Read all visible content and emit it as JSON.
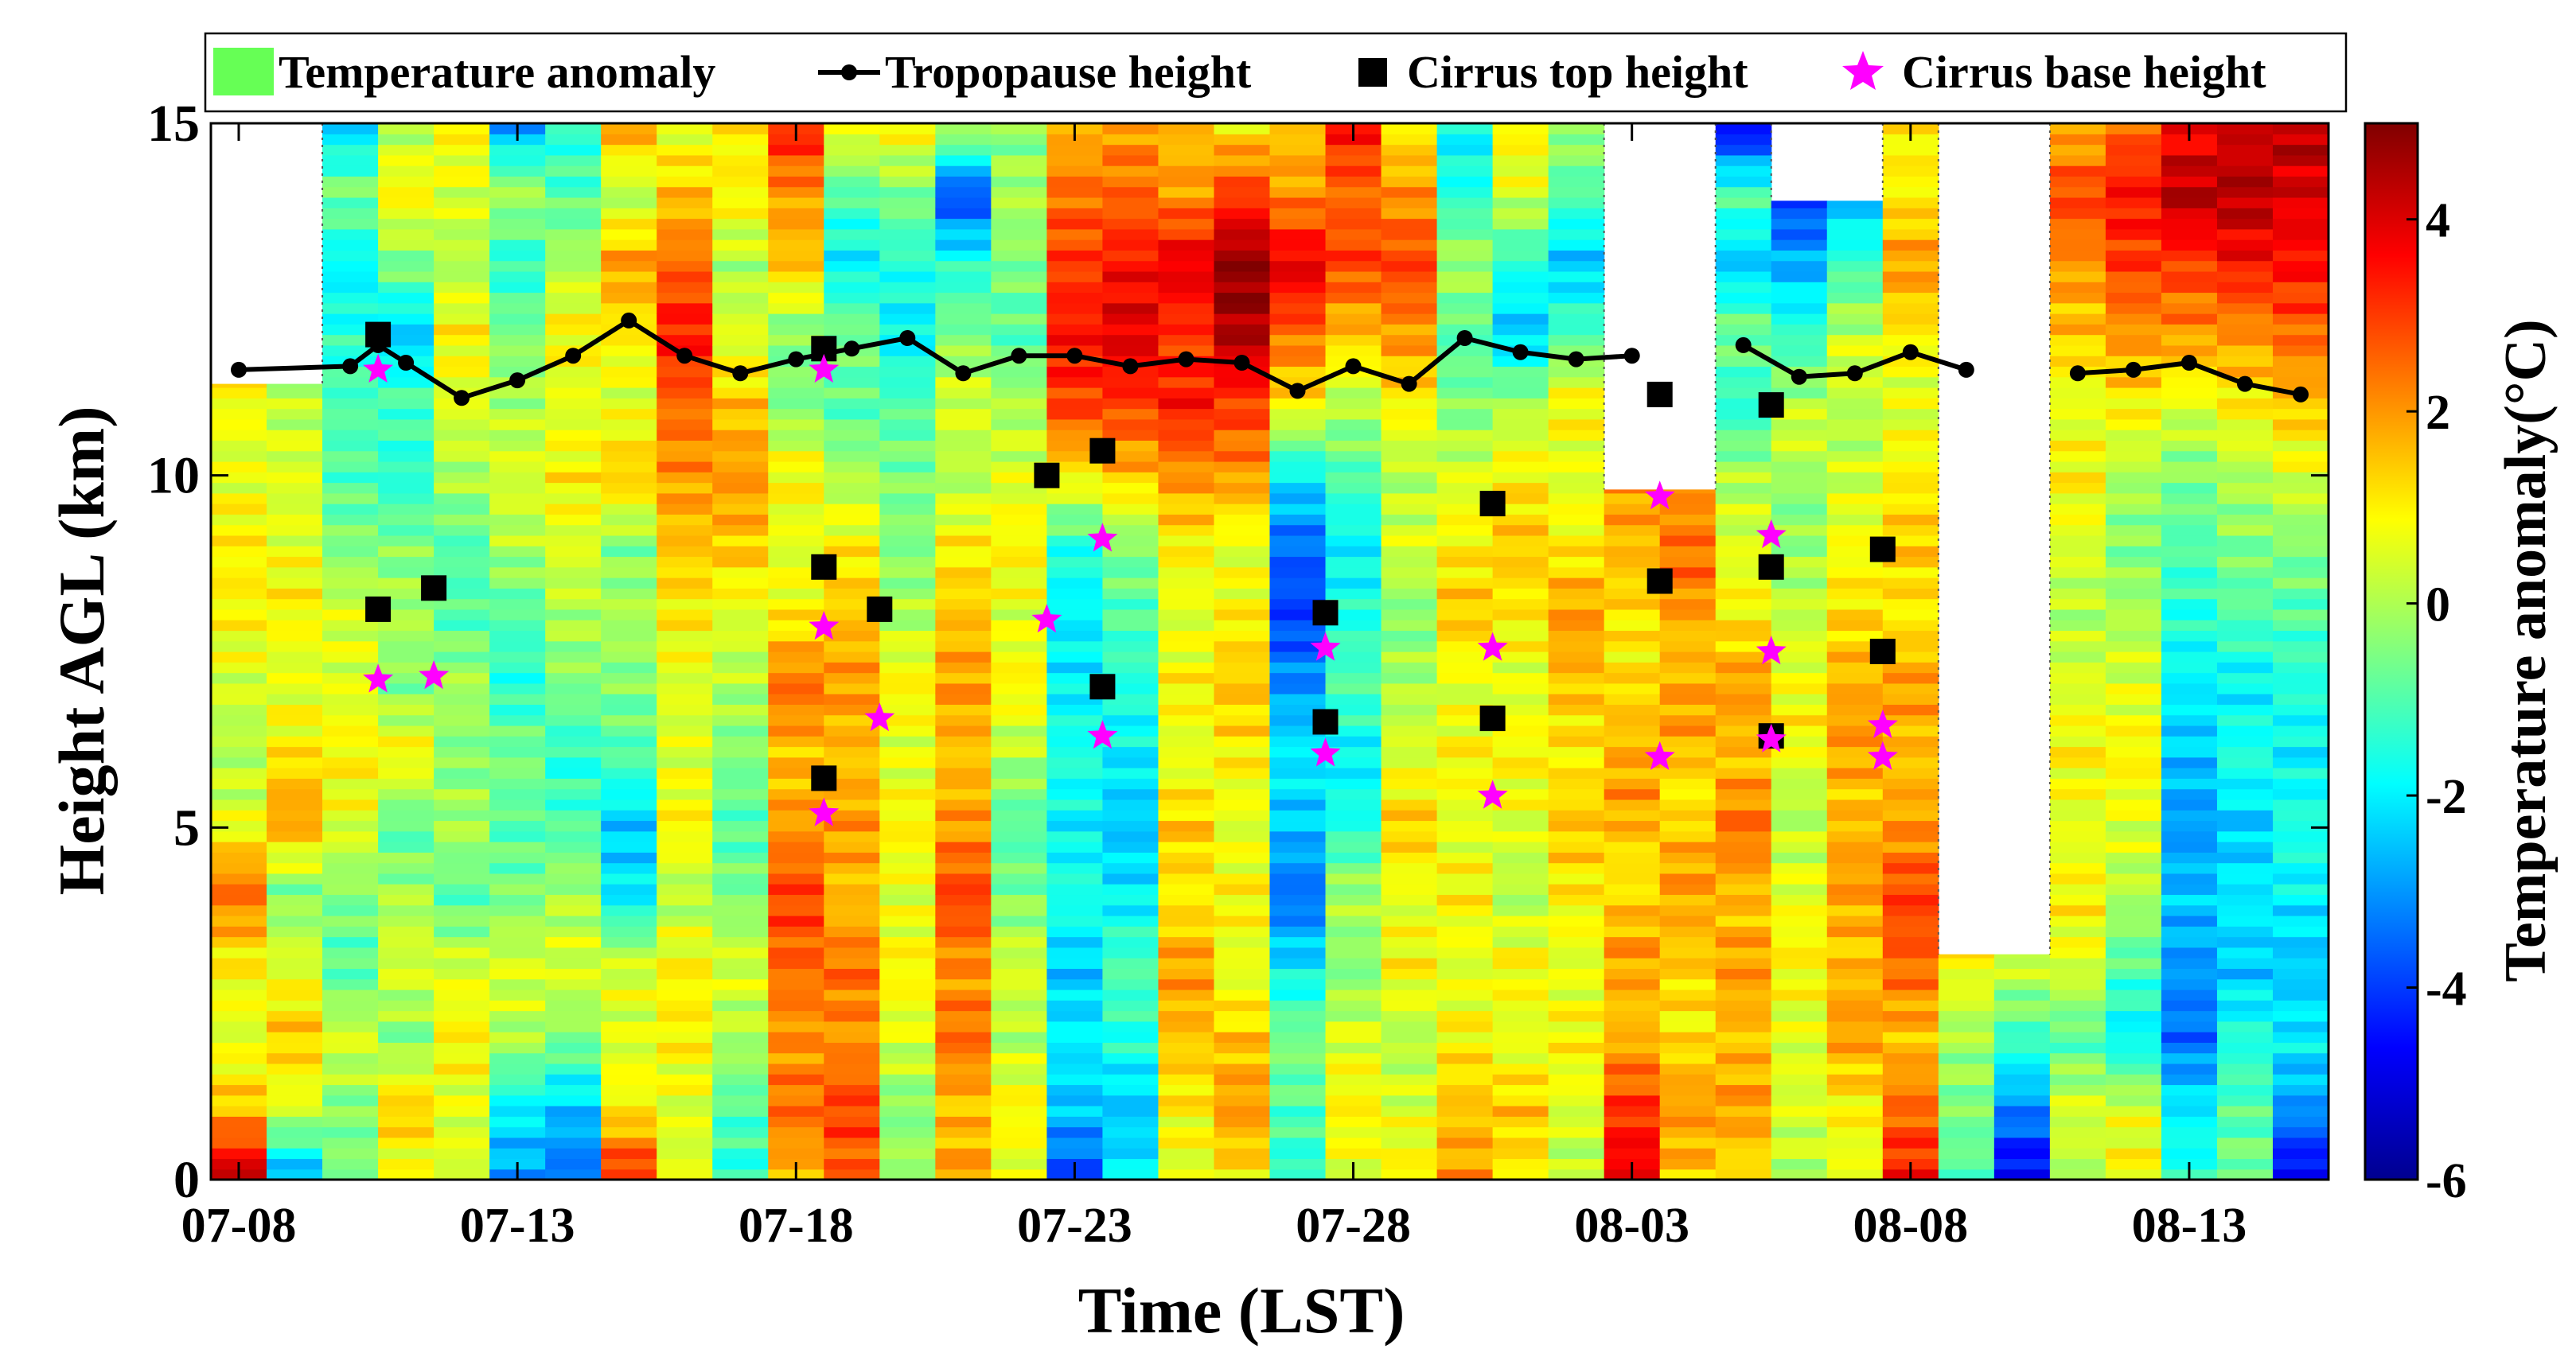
{
  "chart_data": {
    "type": "heatmap",
    "title": "",
    "xlabel": "Time (LST)",
    "ylabel": "Height AGL (km)",
    "colorbar_label": "Temperature anomaly(°C)",
    "x_tick_labels": [
      "07-08",
      "07-13",
      "07-18",
      "07-23",
      "07-28",
      "08-03",
      "08-08",
      "08-13"
    ],
    "x_tick_days": [
      0,
      5,
      10,
      15,
      20,
      25,
      30,
      35
    ],
    "xlim_days": [
      -0.5,
      37.5
    ],
    "y_ticks": [
      0,
      5,
      10,
      15
    ],
    "ylim": [
      0,
      15
    ],
    "clim": [
      -6,
      5
    ],
    "colorbar_ticks": [
      -6,
      -4,
      -2,
      0,
      2,
      4
    ],
    "colormap": "jet",
    "legend": {
      "position": "top",
      "entries": [
        {
          "label": "Temperature anomaly",
          "marker": "patch",
          "color": "#66ff55"
        },
        {
          "label": "Tropopause height",
          "marker": "line-dot",
          "color": "#000000"
        },
        {
          "label": "Cirrus top height",
          "marker": "square",
          "color": "#000000"
        },
        {
          "label": "Cirrus base height",
          "marker": "star",
          "color": "#ff00ff"
        }
      ]
    },
    "profiles": [
      {
        "day": 0,
        "top_km": 11.3
      },
      {
        "day": 1,
        "top_km": 11.3
      },
      {
        "day": 2,
        "top_km": 15.0
      },
      {
        "day": 3,
        "top_km": 15.0
      },
      {
        "day": 4,
        "top_km": 15.0
      },
      {
        "day": 5,
        "top_km": 15.0
      },
      {
        "day": 6,
        "top_km": 15.0
      },
      {
        "day": 7,
        "top_km": 15.0
      },
      {
        "day": 8,
        "top_km": 15.0
      },
      {
        "day": 9,
        "top_km": 15.0
      },
      {
        "day": 10,
        "top_km": 15.0
      },
      {
        "day": 11,
        "top_km": 15.0
      },
      {
        "day": 12,
        "top_km": 15.0
      },
      {
        "day": 13,
        "top_km": 15.0
      },
      {
        "day": 14,
        "top_km": 15.0
      },
      {
        "day": 15,
        "top_km": 15.0
      },
      {
        "day": 16,
        "top_km": 15.0
      },
      {
        "day": 17,
        "top_km": 15.0
      },
      {
        "day": 18,
        "top_km": 15.0
      },
      {
        "day": 19,
        "top_km": 15.0
      },
      {
        "day": 20,
        "top_km": 15.0
      },
      {
        "day": 21,
        "top_km": 15.0
      },
      {
        "day": 22,
        "top_km": 15.0
      },
      {
        "day": 23,
        "top_km": 15.0
      },
      {
        "day": 24,
        "top_km": 15.0
      },
      {
        "day": 25,
        "top_km": 9.8
      },
      {
        "day": 26,
        "top_km": 9.8
      },
      {
        "day": 27,
        "top_km": 15.0
      },
      {
        "day": 28,
        "top_km": 13.9
      },
      {
        "day": 29,
        "top_km": 13.9
      },
      {
        "day": 30,
        "top_km": 15.0
      },
      {
        "day": 31,
        "top_km": 3.2
      },
      {
        "day": 32,
        "top_km": 3.2
      },
      {
        "day": 33,
        "top_km": 15.0
      },
      {
        "day": 34,
        "top_km": 15.0
      },
      {
        "day": 35,
        "top_km": 15.0
      },
      {
        "day": 36,
        "top_km": 15.0
      },
      {
        "day": 37,
        "top_km": 15.0
      }
    ],
    "anomaly_profiles_C": [
      {
        "day": 0,
        "anchors": [
          4.5,
          1.5,
          0.5,
          1.0,
          2.5,
          0.5,
          0.0,
          0.5,
          1.0,
          1.0,
          0.5,
          1.0
        ]
      },
      {
        "day": 1,
        "anchors": [
          -3.0,
          0.5,
          1.5,
          0.5,
          -0.5,
          2.0,
          1.0,
          0.5,
          1.0,
          0.5,
          0.5,
          0.0
        ]
      },
      {
        "day": 2,
        "anchors": [
          -0.5,
          -0.5,
          0.5,
          -1.0,
          -0.5,
          0.5,
          1.0,
          0.5,
          0.5,
          -0.5,
          -1.0,
          -1.0,
          -1.5,
          -2.0,
          -0.5,
          -2.5
        ]
      },
      {
        "day": 3,
        "anchors": [
          0.5,
          1.5,
          -0.5,
          0.5,
          0.0,
          -1.0,
          1.0,
          -0.5,
          0.0,
          -0.5,
          -1.5,
          -1.0,
          -2.5,
          -0.5,
          1.0,
          0.0
        ]
      },
      {
        "day": 4,
        "anchors": [
          0.5,
          0.5,
          1.0,
          0.5,
          -1.0,
          0.0,
          -0.5,
          0.0,
          -1.0,
          -1.0,
          0.0,
          0.5,
          1.0,
          0.0,
          0.5,
          1.0
        ]
      },
      {
        "day": 5,
        "anchors": [
          -3.0,
          -2.0,
          0.0,
          0.5,
          -0.5,
          -1.0,
          -0.5,
          -1.5,
          -1.0,
          0.0,
          0.5,
          0.0,
          -0.5,
          -1.5,
          0.0,
          -3.0
        ]
      },
      {
        "day": 6,
        "anchors": [
          -3.5,
          -2.5,
          -0.5,
          0.5,
          0.0,
          -1.0,
          -1.5,
          -0.5,
          0.0,
          0.5,
          1.0,
          0.5,
          1.0,
          0.0,
          -1.0,
          -1.5
        ]
      },
      {
        "day": 7,
        "anchors": [
          3.5,
          1.0,
          0.5,
          0.5,
          -2.0,
          -2.5,
          -1.0,
          -0.5,
          0.0,
          -0.5,
          1.5,
          0.5,
          1.0,
          2.0,
          0.0,
          2.0
        ]
      },
      {
        "day": 8,
        "anchors": [
          0.5,
          0.5,
          1.0,
          1.0,
          0.0,
          1.0,
          0.5,
          0.5,
          1.0,
          1.5,
          2.0,
          2.5,
          3.5,
          2.5,
          1.5,
          0.5
        ]
      },
      {
        "day": 9,
        "anchors": [
          -1.5,
          -1.0,
          0.0,
          0.5,
          -0.5,
          -1.0,
          -0.5,
          0.0,
          0.5,
          1.5,
          2.0,
          1.5,
          0.5,
          0.0,
          1.0,
          1.0
        ]
      },
      {
        "day": 10,
        "anchors": [
          1.5,
          2.5,
          2.0,
          2.5,
          3.0,
          2.0,
          1.5,
          2.5,
          1.0,
          0.5,
          1.0,
          -0.5,
          -0.5,
          1.5,
          2.0,
          3.5
        ]
      },
      {
        "day": 11,
        "anchors": [
          2.5,
          3.0,
          2.0,
          2.5,
          1.5,
          2.0,
          1.5,
          2.0,
          1.5,
          1.0,
          0.0,
          -1.0,
          -0.5,
          -2.0,
          -1.0,
          1.0
        ]
      },
      {
        "day": 12,
        "anchors": [
          0.0,
          -0.5,
          0.5,
          1.0,
          0.5,
          1.0,
          0.5,
          1.0,
          0.0,
          -0.5,
          -0.5,
          -1.0,
          -2.0,
          -1.5,
          -0.5,
          1.0
        ]
      },
      {
        "day": 13,
        "anchors": [
          2.0,
          1.5,
          2.5,
          2.0,
          3.0,
          2.0,
          1.5,
          2.0,
          1.5,
          1.0,
          0.0,
          0.5,
          -0.5,
          -1.5,
          -4.0,
          0.5
        ]
      },
      {
        "day": 14,
        "anchors": [
          0.5,
          1.0,
          0.0,
          0.5,
          -0.5,
          -1.0,
          0.0,
          1.0,
          0.5,
          1.0,
          0.5,
          0.0,
          -1.0,
          -0.5,
          0.0,
          -0.5
        ]
      },
      {
        "day": 15,
        "anchors": [
          -4.0,
          -2.5,
          -2.0,
          -2.5,
          -1.5,
          -2.0,
          -1.5,
          -2.0,
          -2.0,
          -1.5,
          1.0,
          3.0,
          3.5,
          3.0,
          2.5,
          1.5
        ]
      },
      {
        "day": 16,
        "anchors": [
          -2.0,
          -2.5,
          -1.5,
          -1.0,
          -2.0,
          -2.5,
          -2.0,
          -1.5,
          -1.0,
          -0.5,
          1.5,
          3.0,
          4.0,
          3.5,
          2.5,
          2.0
        ]
      },
      {
        "day": 17,
        "anchors": [
          0.5,
          1.0,
          1.5,
          2.0,
          1.0,
          1.5,
          0.5,
          1.0,
          0.5,
          1.0,
          2.0,
          3.5,
          3.0,
          4.0,
          2.0,
          1.5
        ]
      },
      {
        "day": 18,
        "anchors": [
          1.0,
          2.0,
          1.5,
          0.5,
          1.0,
          0.5,
          1.0,
          1.5,
          1.0,
          0.5,
          2.0,
          3.0,
          4.5,
          5.0,
          3.0,
          1.0
        ]
      },
      {
        "day": 19,
        "anchors": [
          -1.5,
          -1.0,
          -0.5,
          -2.0,
          -3.5,
          -2.5,
          -2.0,
          -3.0,
          -4.0,
          -3.5,
          -2.0,
          1.0,
          2.5,
          4.0,
          2.0,
          1.5
        ]
      },
      {
        "day": 20,
        "anchors": [
          0.5,
          1.0,
          0.5,
          -0.5,
          0.0,
          -1.5,
          -2.0,
          -1.0,
          -1.5,
          -2.0,
          -1.0,
          0.0,
          1.5,
          3.0,
          2.5,
          3.5
        ]
      },
      {
        "day": 21,
        "anchors": [
          1.0,
          0.5,
          0.0,
          1.0,
          0.5,
          1.5,
          0.5,
          0.0,
          -0.5,
          0.5,
          0.0,
          1.0,
          2.0,
          3.0,
          2.0,
          1.0
        ]
      },
      {
        "day": 22,
        "anchors": [
          2.0,
          1.5,
          1.0,
          0.5,
          1.0,
          0.5,
          1.0,
          0.5,
          1.5,
          1.0,
          0.5,
          -0.5,
          -1.0,
          0.0,
          -1.5,
          -2.0
        ]
      },
      {
        "day": 23,
        "anchors": [
          1.0,
          1.5,
          0.5,
          1.0,
          0.0,
          0.5,
          1.0,
          0.5,
          1.0,
          1.5,
          1.0,
          0.0,
          -2.5,
          -1.5,
          0.5,
          1.0
        ]
      },
      {
        "day": 24,
        "anchors": [
          0.0,
          0.5,
          1.0,
          0.5,
          1.0,
          1.5,
          1.0,
          1.5,
          2.0,
          1.0,
          0.5,
          1.0,
          -1.0,
          -2.5,
          -1.0,
          0.0
        ]
      },
      {
        "day": 25,
        "anchors": [
          4.0,
          3.0,
          1.5,
          2.0,
          1.0,
          2.0,
          1.5,
          1.0,
          1.5,
          2.0
        ]
      },
      {
        "day": 26,
        "anchors": [
          1.5,
          2.0,
          1.0,
          1.5,
          2.0,
          1.0,
          2.0,
          1.5,
          2.5,
          2.0
        ]
      },
      {
        "day": 27,
        "anchors": [
          1.0,
          2.0,
          1.5,
          2.0,
          1.5,
          2.5,
          1.5,
          2.0,
          1.0,
          0.5,
          0.0,
          -1.5,
          -0.5,
          -2.5,
          -1.0,
          -5.0
        ]
      },
      {
        "day": 28,
        "anchors": [
          0.0,
          0.5,
          0.5,
          1.0,
          0.5,
          0.0,
          1.0,
          0.5,
          0.0,
          -0.5,
          0.5,
          -1.0,
          -2.5,
          -4.0
        ]
      },
      {
        "day": 29,
        "anchors": [
          0.5,
          1.0,
          2.0,
          1.5,
          2.0,
          1.5,
          2.0,
          1.5,
          1.0,
          0.5,
          0.0,
          0.5,
          -1.0,
          -2.5
        ]
      },
      {
        "day": 30,
        "anchors": [
          3.5,
          2.5,
          1.5,
          2.5,
          3.0,
          2.0,
          1.5,
          2.0,
          1.0,
          1.5,
          1.0,
          0.5,
          1.0,
          2.0,
          1.0,
          1.0
        ]
      },
      {
        "day": 31,
        "anchors": [
          -1.0,
          -0.5,
          0.0,
          1.0
        ]
      },
      {
        "day": 32,
        "anchors": [
          -5.0,
          -3.0,
          -1.0,
          0.5
        ]
      },
      {
        "day": 33,
        "anchors": [
          0.0,
          0.5,
          -1.0,
          0.5,
          1.0,
          0.5,
          1.0,
          0.5,
          0.0,
          0.5,
          1.0,
          0.5,
          1.5,
          2.0,
          3.0,
          1.5
        ]
      },
      {
        "day": 34,
        "anchors": [
          1.0,
          0.5,
          -2.0,
          -1.0,
          0.0,
          0.5,
          1.0,
          0.5,
          0.0,
          -0.5,
          0.0,
          1.0,
          2.0,
          3.0,
          3.5,
          2.5
        ]
      },
      {
        "day": 35,
        "anchors": [
          -1.5,
          -2.0,
          -3.5,
          -3.0,
          -2.5,
          -3.0,
          -2.5,
          -2.0,
          -1.5,
          -1.0,
          -0.5,
          0.5,
          2.0,
          3.0,
          4.5,
          3.5
        ]
      },
      {
        "day": 36,
        "anchors": [
          -0.5,
          -1.0,
          -1.5,
          -2.5,
          -2.0,
          -2.5,
          -1.5,
          -2.0,
          -1.0,
          -0.5,
          0.0,
          1.0,
          2.0,
          3.5,
          4.5,
          4.0
        ]
      },
      {
        "day": 37,
        "anchors": [
          -5.0,
          -3.0,
          -2.0,
          -2.5,
          -2.0,
          -1.5,
          -2.0,
          -1.5,
          -1.0,
          -0.5,
          0.5,
          1.5,
          2.5,
          3.5,
          4.0,
          4.5
        ]
      }
    ],
    "tropopause_height": [
      {
        "day": 0,
        "height": 11.5
      },
      {
        "day": 2,
        "height": 11.55
      },
      {
        "day": 2.5,
        "height": 11.85
      },
      {
        "day": 3,
        "height": 11.6
      },
      {
        "day": 4,
        "height": 11.1
      },
      {
        "day": 5,
        "height": 11.35
      },
      {
        "day": 6,
        "height": 11.7
      },
      {
        "day": 7,
        "height": 12.2
      },
      {
        "day": 8,
        "height": 11.7
      },
      {
        "day": 9,
        "height": 11.45
      },
      {
        "day": 10,
        "height": 11.65
      },
      {
        "day": 11,
        "height": 11.8
      },
      {
        "day": 12,
        "height": 11.95
      },
      {
        "day": 13,
        "height": 11.45
      },
      {
        "day": 14,
        "height": 11.7
      },
      {
        "day": 15,
        "height": 11.7
      },
      {
        "day": 16,
        "height": 11.55
      },
      {
        "day": 17,
        "height": 11.65
      },
      {
        "day": 18,
        "height": 11.6
      },
      {
        "day": 19,
        "height": 11.2
      },
      {
        "day": 20,
        "height": 11.55
      },
      {
        "day": 21,
        "height": 11.3
      },
      {
        "day": 22,
        "height": 11.95
      },
      {
        "day": 23,
        "height": 11.75
      },
      {
        "day": 24,
        "height": 11.65
      },
      {
        "day": 25,
        "height": 11.7
      },
      {
        "day": null,
        "height": null
      },
      {
        "day": 27,
        "height": 11.85
      },
      {
        "day": 28,
        "height": 11.4
      },
      {
        "day": 29,
        "height": 11.45
      },
      {
        "day": 30,
        "height": 11.75
      },
      {
        "day": 31,
        "height": 11.5
      },
      {
        "day": null,
        "height": null
      },
      {
        "day": 33,
        "height": 11.45
      },
      {
        "day": 34,
        "height": 11.5
      },
      {
        "day": 35,
        "height": 11.6
      },
      {
        "day": 36,
        "height": 11.3
      },
      {
        "day": 37,
        "height": 11.15
      }
    ],
    "cirrus_top_height": [
      {
        "day": 2.5,
        "height": 12.0
      },
      {
        "day": 2.5,
        "height": 8.1
      },
      {
        "day": 3.5,
        "height": 8.4
      },
      {
        "day": 10.5,
        "height": 11.8
      },
      {
        "day": 10.5,
        "height": 8.7
      },
      {
        "day": 10.5,
        "height": 5.7
      },
      {
        "day": 11.5,
        "height": 8.1
      },
      {
        "day": 14.5,
        "height": 10.0
      },
      {
        "day": 15.5,
        "height": 10.35
      },
      {
        "day": 15.5,
        "height": 7.0
      },
      {
        "day": 19.5,
        "height": 8.05
      },
      {
        "day": 19.5,
        "height": 6.5
      },
      {
        "day": 22.5,
        "height": 9.6
      },
      {
        "day": 22.5,
        "height": 6.55
      },
      {
        "day": 25.5,
        "height": 11.15
      },
      {
        "day": 25.5,
        "height": 8.5
      },
      {
        "day": 27.5,
        "height": 11.0
      },
      {
        "day": 27.5,
        "height": 8.7
      },
      {
        "day": 27.5,
        "height": 6.3
      },
      {
        "day": 29.5,
        "height": 8.95
      },
      {
        "day": 29.5,
        "height": 7.5
      }
    ],
    "cirrus_base_height": [
      {
        "day": 2.5,
        "height": 11.5
      },
      {
        "day": 2.5,
        "height": 7.1
      },
      {
        "day": 3.5,
        "height": 7.15
      },
      {
        "day": 10.5,
        "height": 11.5
      },
      {
        "day": 10.5,
        "height": 7.85
      },
      {
        "day": 10.5,
        "height": 5.2
      },
      {
        "day": 11.5,
        "height": 6.55
      },
      {
        "day": 14.5,
        "height": 7.95
      },
      {
        "day": 15.5,
        "height": 9.1
      },
      {
        "day": 15.5,
        "height": 6.3
      },
      {
        "day": 19.5,
        "height": 7.55
      },
      {
        "day": 19.5,
        "height": 6.05
      },
      {
        "day": 22.5,
        "height": 7.55
      },
      {
        "day": 22.5,
        "height": 5.45
      },
      {
        "day": 25.5,
        "height": 9.7
      },
      {
        "day": 25.5,
        "height": 6.0
      },
      {
        "day": 27.5,
        "height": 9.15
      },
      {
        "day": 27.5,
        "height": 7.5
      },
      {
        "day": 27.5,
        "height": 6.25
      },
      {
        "day": 29.5,
        "height": 6.45
      },
      {
        "day": 29.5,
        "height": 6.0
      }
    ]
  }
}
